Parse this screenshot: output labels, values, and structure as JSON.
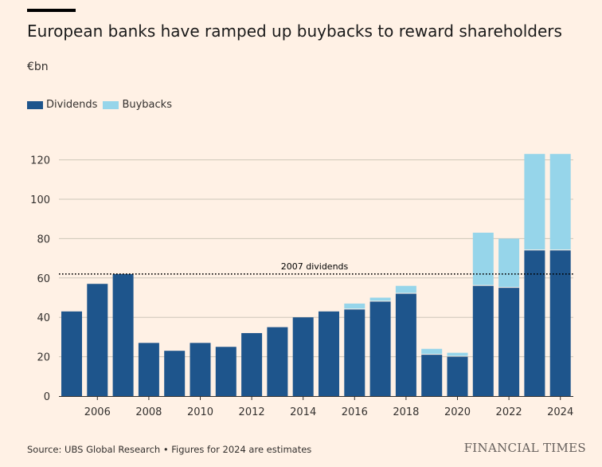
{
  "header": {
    "title": "European banks have ramped up buybacks to reward shareholders",
    "unit": "€bn"
  },
  "legend": [
    {
      "label": "Dividends",
      "color": "#1E558C"
    },
    {
      "label": "Buybacks",
      "color": "#96D5EA"
    }
  ],
  "footer": {
    "source": "Source: UBS Global Research • Figures for 2024 are estimates",
    "brand": "FINANCIAL TIMES"
  },
  "chart_data": {
    "type": "bar",
    "stacked": true,
    "categories": [
      "2005",
      "2006",
      "2007",
      "2008",
      "2009",
      "2010",
      "2011",
      "2012",
      "2013",
      "2014",
      "2015",
      "2016",
      "2017",
      "2018",
      "2019",
      "2020",
      "2021",
      "2022",
      "2023",
      "2024"
    ],
    "series": [
      {
        "name": "Dividends",
        "color": "#1E558C",
        "values": [
          43,
          57,
          62,
          27,
          23,
          27,
          25,
          32,
          35,
          40,
          43,
          44,
          48,
          52,
          21,
          20,
          56,
          55,
          74,
          74
        ]
      },
      {
        "name": "Buybacks",
        "color": "#96D5EA",
        "values": [
          0,
          0,
          0,
          0,
          0,
          0,
          0,
          0,
          0,
          0,
          0,
          3,
          2,
          4,
          3,
          2,
          27,
          25,
          49,
          49
        ]
      }
    ],
    "x_tick_labels": [
      "2006",
      "2008",
      "2010",
      "2012",
      "2014",
      "2016",
      "2018",
      "2020",
      "2022",
      "2024"
    ],
    "y_ticks": [
      0,
      20,
      40,
      60,
      80,
      100,
      120
    ],
    "ylim": [
      0,
      130
    ],
    "grid": true,
    "reference_line": {
      "label": "2007 dividends",
      "value": 62
    }
  }
}
